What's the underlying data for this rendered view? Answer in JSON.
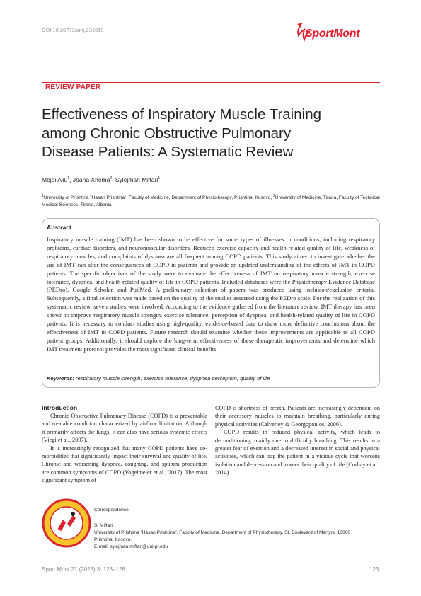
{
  "header": {
    "doi": "DOI 10.26773/smj.231019",
    "logo_text": "SportMont"
  },
  "article": {
    "type": "REVIEW PAPER",
    "title_lines": [
      "Effectiveness of Inspiratory Muscle Training",
      "among Chronic Obstructive Pulmonary",
      "Disease Patients: A Systematic Review"
    ],
    "authors": [
      {
        "name": "Mejdi Aliu",
        "sup": "1",
        "sep": ", "
      },
      {
        "name": "Joana Xhema",
        "sup": "2",
        "sep": ", "
      },
      {
        "name": "Sylejman Miftari",
        "sup": "1",
        "sep": ""
      }
    ],
    "affiliations": [
      {
        "sup": "1",
        "text": "University of Prishtina “Hasan Prishtina”, Faculty of Medicine, Department of Physiotherapy, Prishtina, Kosovo, "
      },
      {
        "sup": "2",
        "text": "University of Medicine, Tirana, Faculty of Technical Medical Sciences, Tirana, Albania"
      }
    ]
  },
  "abstract": {
    "heading": "Abstract",
    "text": "Inspiratory muscle training (IMT) has been shown to be effective for some types of illnesses or conditions, including respiratory problems, cardiac disorders, and neuromuscular disorders. Reduced exercise capacity and health-related quality of life, weakness of respiratory muscles, and complaints of dyspnea are all frequent among COPD patients. This study aimed to investigate whether the use of IMT can alter the consequences of COPD in patients and provide an updated understanding of the effects of IMT in COPD patients. The specific objectives of the study were to evaluate the effectiveness of IMT on respiratory muscle strength, exercise tolerance, dyspnea, and health-related quality of life in COPD patients. Included databases were the Physiotherapy Evidence Database (PEDro), Google Scholar, and PubMed. A preliminary selection of papers was produced using inclusion/exclusion criteria. Subsequently, a final selection was made based on the quality of the studies assessed using the PEDro scale. For the realization of this systematic review, seven studies were involved. According to the evidence gathered from the literature review, IMT therapy has been shown to improve respiratory muscle strength, exercise tolerance, perception of dyspnea, and health-related quality of life in COPD patients. It is necessary to conduct studies using high-quality, evidence-based data to draw more definitive conclusions about the effectiveness of IMT in COPD patients. Future research should examine whether these improvements are applicable to all COPD patient groups. Additionally, it should explore the long-term effectiveness of these therapeutic improvements and determine which IMT treatment protocol provides the most significant clinical benefits.",
    "keywords_label": "Keywords:",
    "keywords": "respiratory muscle strength, exercise tolerance, dyspnea perception, quality of life"
  },
  "introduction": {
    "heading": "Introduction",
    "left_paragraphs": [
      "Chronic Obstructive Pulmonary Disease (COPD) is a preventable and treatable condition characterized by airflow limitation. Although it primarily affects the lungs, it can also have serious systemic effects (Viegi et al., 2007).",
      "It is increasingly recognized that many COPD patients have co-morbidities that significantly impact their survival and quality of life. Chronic and worsening dyspnea, coughing, and sputum production are common symptoms of COPD (Vogelmeier et al., 2017). The most significant symptom of"
    ],
    "right_first": "COPD is shortness of breath. Patients are increasingly dependent on their accessory muscles to maintain breathing, particularly during physical activities (Calverley & Georgopoulos, 2006).",
    "right_second": "COPD results in reduced physical activity, which leads to deconditioning, mainly due to difficulty breathing. This results in a greater fear of exertion and a decreased interest in social and physical activities, which can trap the patient in a vicious cycle that worsens isolation and depression and lowers their quality of life (Corhay et al., 2014)."
  },
  "correspondence": {
    "label": "Correspondence:",
    "name": "S. Miftari",
    "address_line1": "University of Prishtina “Hasan Prishtina”, Faculty of Medicine, Department of Physiotherapy, St. Boulevard of Martyrs, 10000",
    "address_line2": "Prishtina, Kosovo.",
    "email": "E-mail: sylejman.miftari@uni-pr.edu"
  },
  "footer": {
    "citation": "Sport Mont 21 (2023) 3: 123–128",
    "page": "123"
  },
  "colors": {
    "accent": "#d9232e",
    "text": "#231f20",
    "muted": "#8c8c8c"
  }
}
